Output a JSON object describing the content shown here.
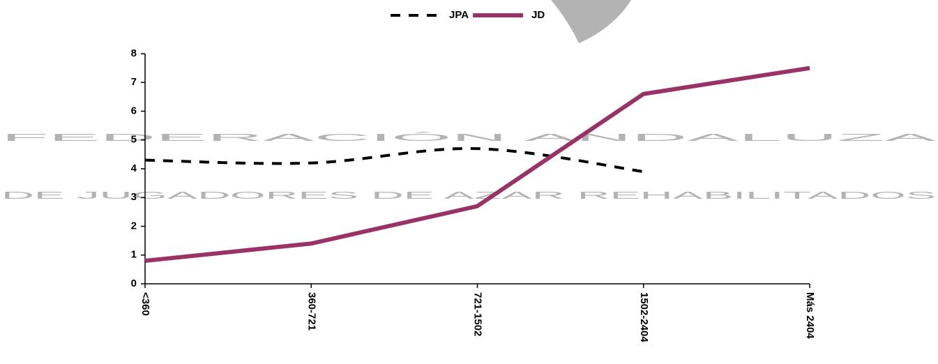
{
  "chart_data": {
    "type": "line",
    "watermark": [
      "FEDERACIÓN ANDALUZA",
      "DE JUGADORES DE AZAR REHABILITADOS"
    ],
    "categories": [
      "<360",
      "360-721",
      "721-1502",
      "1502-2404",
      "Más 2404"
    ],
    "series": [
      {
        "name": "JPA",
        "color": "#000000",
        "dash": true,
        "values": [
          4.3,
          4.2,
          4.7,
          3.9,
          null
        ]
      },
      {
        "name": "JD",
        "color": "#993366",
        "dash": false,
        "values": [
          0.8,
          1.4,
          2.7,
          6.6,
          7.5
        ]
      }
    ],
    "ylim": [
      0,
      8
    ],
    "yticks": [
      0,
      1,
      2,
      3,
      4,
      5,
      6,
      7,
      8
    ],
    "legend": "top"
  }
}
